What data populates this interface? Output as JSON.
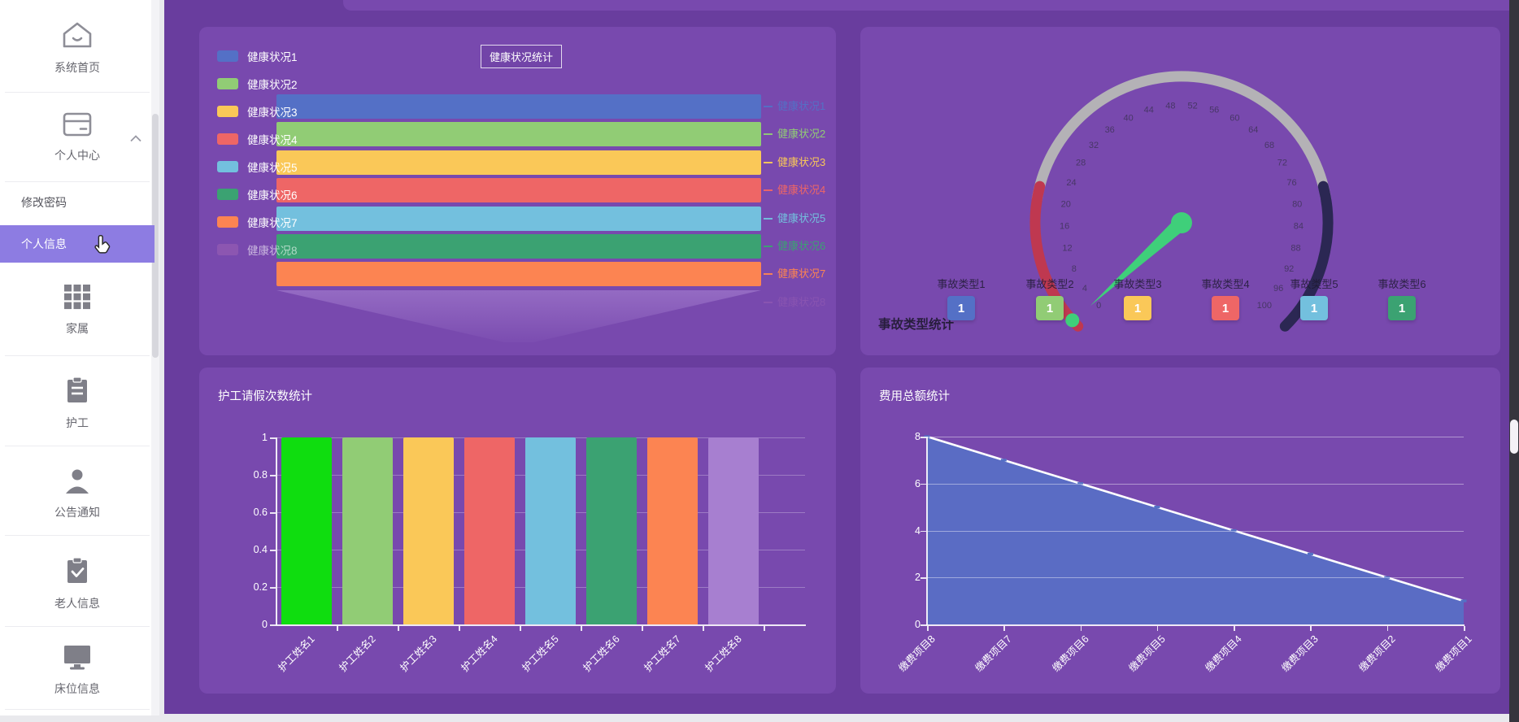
{
  "palette": [
    "#5470c6",
    "#91cc75",
    "#fac858",
    "#ee6666",
    "#73c0de",
    "#3ba272",
    "#fc8452",
    "#9a60b4"
  ],
  "colors": {
    "main_bg": "#693d9e",
    "panel_bg": "#7849ae",
    "selected_item_bg": "#8d7ce2",
    "sidebar_bg": "#ffffff",
    "gauge_red": "#bf3850",
    "gauge_silver": "#b4b2b6",
    "gauge_navy": "#2b2753",
    "gauge_needle": "#3fcf7a",
    "area_fill": "#5670c6",
    "bright_green_bar": "#0fdd0f"
  },
  "sidebar": {
    "items": [
      {
        "id": "system-home",
        "label": "系统首页",
        "icon": "home"
      },
      {
        "id": "personal-center",
        "label": "个人中心",
        "icon": "card",
        "expanded": true
      },
      {
        "id": "change-password",
        "label": "修改密码",
        "sub": true
      },
      {
        "id": "personal-info",
        "label": "个人信息",
        "sub": true,
        "selected": true
      },
      {
        "id": "family",
        "label": "家属",
        "icon": "grid"
      },
      {
        "id": "caregiver",
        "label": "护工",
        "icon": "clipboard"
      },
      {
        "id": "announcements",
        "label": "公告通知",
        "icon": "person"
      },
      {
        "id": "elder-info",
        "label": "老人信息",
        "icon": "clipboard-check"
      },
      {
        "id": "bed-info",
        "label": "床位信息",
        "icon": "monitor"
      }
    ]
  },
  "chart_data": [
    {
      "type": "bar",
      "orientation": "horizontal",
      "panel": "top-left",
      "title": "健康状况统计",
      "categories": [
        "健康状况1",
        "健康状况2",
        "健康状况3",
        "健康状况4",
        "健康状况5",
        "健康状况6",
        "健康状况7",
        "健康状况8"
      ],
      "values": [
        1,
        1,
        1,
        1,
        1,
        1,
        1,
        1
      ],
      "colors": [
        "#5470c6",
        "#91cc75",
        "#fac858",
        "#ee6666",
        "#73c0de",
        "#3ba272",
        "#fc8452",
        "#9a60b4"
      ],
      "legend_position": "left",
      "axis_labels_position": "right"
    },
    {
      "type": "gauge",
      "panel": "top-right",
      "title": "事故类型统计",
      "min": 0,
      "max": 100,
      "tick_step": 4,
      "value": 1,
      "segments": [
        {
          "upTo": 22,
          "color": "#bf3850"
        },
        {
          "upTo": 78,
          "color": "#b4b2b6"
        },
        {
          "upTo": 100,
          "color": "#2b2753"
        }
      ],
      "stats": {
        "labels": [
          "事故类型1",
          "事故类型2",
          "事故类型3",
          "事故类型4",
          "事故类型5",
          "事故类型6"
        ],
        "values": [
          1,
          1,
          1,
          1,
          1,
          1
        ],
        "colors": [
          "#5470c6",
          "#91cc75",
          "#fac858",
          "#ee6666",
          "#73c0de",
          "#3ba272"
        ]
      }
    },
    {
      "type": "bar",
      "panel": "bottom-left",
      "title": "护工请假次数统计",
      "categories": [
        "护工姓名1",
        "护工姓名2",
        "护工姓名3",
        "护工姓名4",
        "护工姓名5",
        "护工姓名6",
        "护工姓名7",
        "护工姓名8"
      ],
      "values": [
        1,
        1,
        1,
        1,
        1,
        1,
        1,
        1
      ],
      "ylim": [
        0,
        1
      ],
      "yticks": [
        0,
        0.2,
        0.4,
        0.6,
        0.8,
        1
      ],
      "colors": [
        "#0fdd0f",
        "#91cc75",
        "#fac858",
        "#ee6666",
        "#73c0de",
        "#3ba272",
        "#fc8452",
        "#a77fd0"
      ],
      "grid": true
    },
    {
      "type": "area",
      "panel": "bottom-right",
      "title": "费用总额统计",
      "categories": [
        "缴费项目8",
        "缴费项目7",
        "缴费项目6",
        "缴费项目5",
        "缴费项目4",
        "缴费项目3",
        "缴费项目2",
        "缴费项目1"
      ],
      "values": [
        8,
        7,
        6,
        5,
        4,
        3,
        2,
        1
      ],
      "ylim": [
        0,
        8
      ],
      "yticks": [
        0,
        2,
        4,
        6,
        8
      ],
      "line_color": "#ffffff",
      "fill_color": "#5670c6",
      "grid": true
    }
  ]
}
